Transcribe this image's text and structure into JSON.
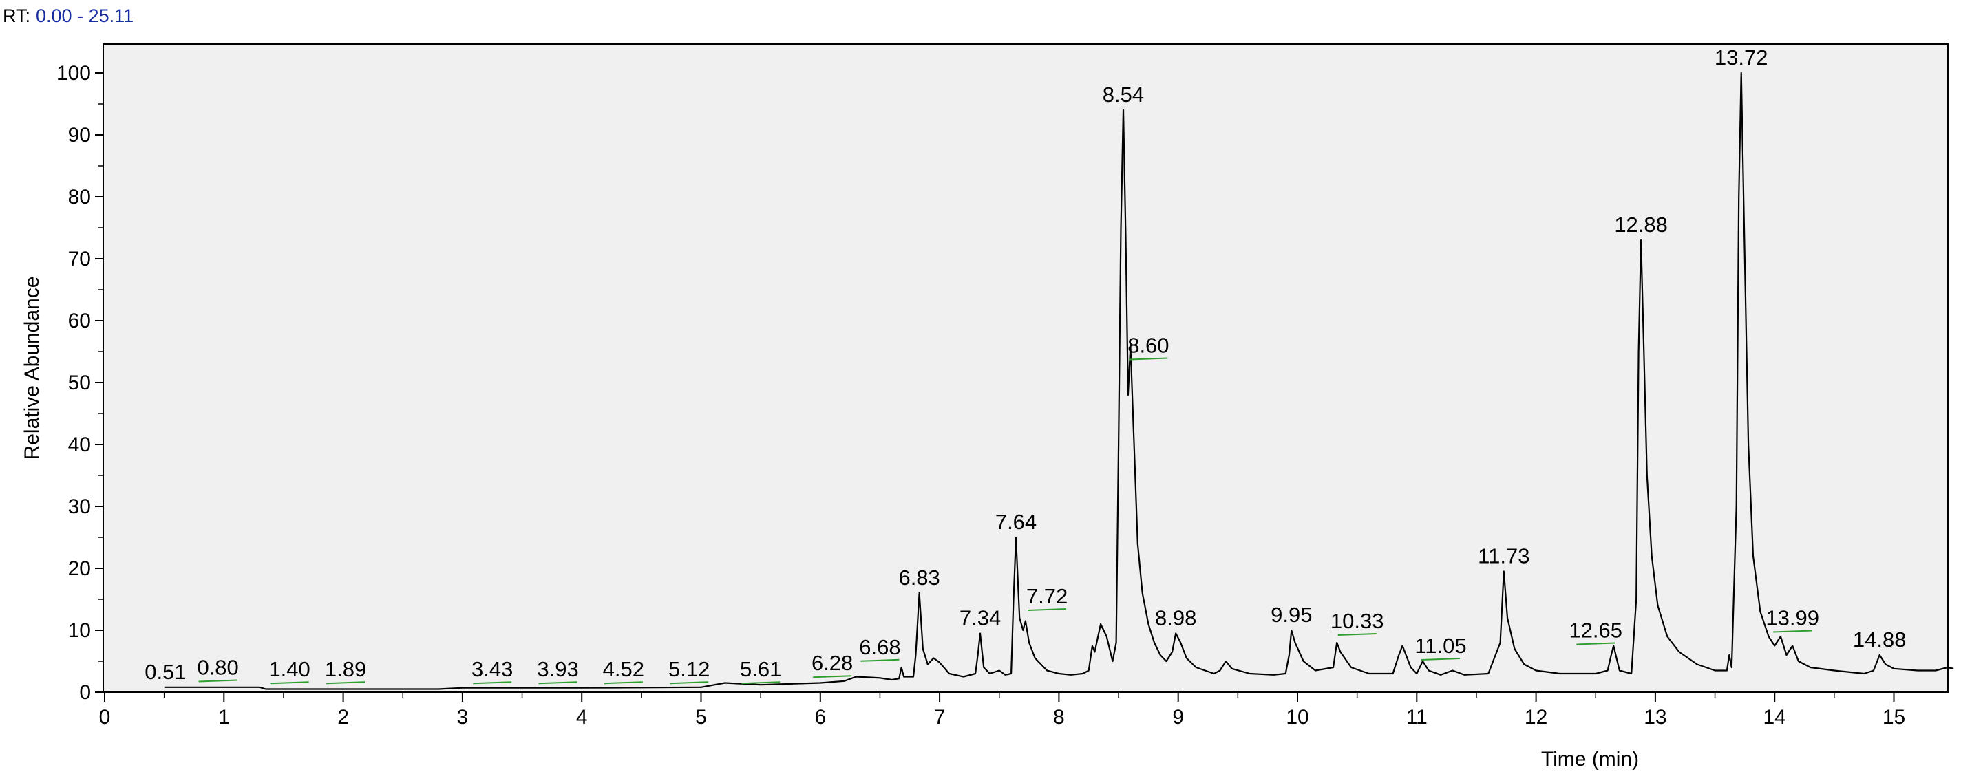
{
  "header": {
    "label": "RT:",
    "range": "0.00 - 25.11"
  },
  "chart_data": {
    "type": "line",
    "title": "",
    "xlabel": "Time (min)",
    "ylabel": "Relative Abundance",
    "xlim": [
      0,
      15.5
    ],
    "ylim": [
      0,
      105
    ],
    "x_ticks": [
      "0",
      "1",
      "2",
      "3",
      "4",
      "5",
      "6",
      "7",
      "8",
      "9",
      "10",
      "11",
      "12",
      "13",
      "14",
      "15"
    ],
    "y_ticks": [
      "0",
      "10",
      "20",
      "30",
      "40",
      "50",
      "60",
      "70",
      "80",
      "90",
      "100"
    ],
    "grid": false,
    "colors": {
      "trace": "#000000",
      "baseline_marker": "#2e9e2e",
      "plot_bg": "#f0f0f0",
      "rt_value": "#1a2ea0"
    },
    "trace": [
      [
        0.5,
        0.8
      ],
      [
        1.3,
        0.8
      ],
      [
        1.35,
        0.5
      ],
      [
        2.8,
        0.5
      ],
      [
        3.0,
        0.7
      ],
      [
        4.0,
        0.7
      ],
      [
        5.0,
        0.8
      ],
      [
        5.2,
        1.5
      ],
      [
        5.5,
        1.2
      ],
      [
        6.0,
        1.5
      ],
      [
        6.2,
        1.8
      ],
      [
        6.3,
        2.5
      ],
      [
        6.5,
        2.3
      ],
      [
        6.6,
        2.0
      ],
      [
        6.66,
        2.2
      ],
      [
        6.68,
        4.0
      ],
      [
        6.7,
        2.5
      ],
      [
        6.78,
        2.5
      ],
      [
        6.8,
        6.0
      ],
      [
        6.83,
        16.0
      ],
      [
        6.86,
        7.0
      ],
      [
        6.9,
        4.5
      ],
      [
        6.95,
        5.5
      ],
      [
        7.0,
        4.8
      ],
      [
        7.08,
        3.0
      ],
      [
        7.2,
        2.5
      ],
      [
        7.3,
        3.0
      ],
      [
        7.32,
        6.0
      ],
      [
        7.34,
        9.5
      ],
      [
        7.37,
        4.0
      ],
      [
        7.42,
        3.0
      ],
      [
        7.5,
        3.5
      ],
      [
        7.55,
        2.8
      ],
      [
        7.6,
        3.0
      ],
      [
        7.62,
        15.0
      ],
      [
        7.64,
        25.0
      ],
      [
        7.67,
        12.0
      ],
      [
        7.7,
        10.0
      ],
      [
        7.72,
        11.5
      ],
      [
        7.75,
        8.0
      ],
      [
        7.8,
        5.5
      ],
      [
        7.9,
        3.5
      ],
      [
        8.0,
        3.0
      ],
      [
        8.1,
        2.8
      ],
      [
        8.2,
        3.0
      ],
      [
        8.25,
        3.5
      ],
      [
        8.28,
        7.5
      ],
      [
        8.3,
        6.5
      ],
      [
        8.35,
        11.0
      ],
      [
        8.4,
        9.0
      ],
      [
        8.45,
        5.0
      ],
      [
        8.48,
        8.0
      ],
      [
        8.5,
        40.0
      ],
      [
        8.52,
        75.0
      ],
      [
        8.54,
        94.0
      ],
      [
        8.56,
        74.0
      ],
      [
        8.58,
        48.0
      ],
      [
        8.6,
        56.0
      ],
      [
        8.63,
        40.0
      ],
      [
        8.66,
        24.0
      ],
      [
        8.7,
        16.0
      ],
      [
        8.75,
        11.0
      ],
      [
        8.8,
        8.0
      ],
      [
        8.85,
        6.0
      ],
      [
        8.9,
        5.0
      ],
      [
        8.95,
        6.5
      ],
      [
        8.98,
        9.5
      ],
      [
        9.02,
        8.0
      ],
      [
        9.07,
        5.5
      ],
      [
        9.15,
        4.0
      ],
      [
        9.3,
        3.0
      ],
      [
        9.35,
        3.5
      ],
      [
        9.4,
        5.0
      ],
      [
        9.45,
        3.8
      ],
      [
        9.6,
        3.0
      ],
      [
        9.8,
        2.8
      ],
      [
        9.9,
        3.0
      ],
      [
        9.93,
        6.0
      ],
      [
        9.95,
        10.0
      ],
      [
        9.98,
        8.0
      ],
      [
        10.05,
        5.0
      ],
      [
        10.15,
        3.5
      ],
      [
        10.3,
        4.0
      ],
      [
        10.33,
        8.0
      ],
      [
        10.36,
        6.5
      ],
      [
        10.45,
        4.0
      ],
      [
        10.6,
        3.0
      ],
      [
        10.8,
        3.0
      ],
      [
        10.85,
        6.0
      ],
      [
        10.88,
        7.5
      ],
      [
        10.95,
        4.0
      ],
      [
        11.0,
        3.0
      ],
      [
        11.05,
        5.0
      ],
      [
        11.1,
        3.5
      ],
      [
        11.2,
        2.8
      ],
      [
        11.3,
        3.5
      ],
      [
        11.4,
        2.8
      ],
      [
        11.6,
        3.0
      ],
      [
        11.7,
        8.0
      ],
      [
        11.73,
        19.5
      ],
      [
        11.76,
        12.0
      ],
      [
        11.82,
        7.0
      ],
      [
        11.9,
        4.5
      ],
      [
        12.0,
        3.5
      ],
      [
        12.2,
        3.0
      ],
      [
        12.5,
        3.0
      ],
      [
        12.6,
        3.5
      ],
      [
        12.63,
        6.0
      ],
      [
        12.65,
        7.5
      ],
      [
        12.7,
        3.5
      ],
      [
        12.8,
        3.0
      ],
      [
        12.84,
        15.0
      ],
      [
        12.86,
        55.0
      ],
      [
        12.88,
        73.0
      ],
      [
        12.9,
        58.0
      ],
      [
        12.93,
        35.0
      ],
      [
        12.97,
        22.0
      ],
      [
        13.02,
        14.0
      ],
      [
        13.1,
        9.0
      ],
      [
        13.2,
        6.5
      ],
      [
        13.35,
        4.5
      ],
      [
        13.5,
        3.5
      ],
      [
        13.6,
        3.5
      ],
      [
        13.62,
        6.0
      ],
      [
        13.64,
        4.0
      ],
      [
        13.68,
        30.0
      ],
      [
        13.7,
        80.0
      ],
      [
        13.72,
        100.0
      ],
      [
        13.74,
        80.0
      ],
      [
        13.78,
        40.0
      ],
      [
        13.82,
        22.0
      ],
      [
        13.88,
        13.0
      ],
      [
        13.95,
        9.0
      ],
      [
        14.0,
        7.5
      ],
      [
        14.05,
        9.0
      ],
      [
        14.1,
        6.0
      ],
      [
        14.15,
        7.5
      ],
      [
        14.2,
        5.0
      ],
      [
        14.3,
        4.0
      ],
      [
        14.5,
        3.5
      ],
      [
        14.75,
        3.0
      ],
      [
        14.83,
        3.5
      ],
      [
        14.88,
        6.0
      ],
      [
        14.93,
        4.5
      ],
      [
        15.0,
        3.8
      ],
      [
        15.2,
        3.5
      ],
      [
        15.35,
        3.5
      ],
      [
        15.45,
        4.0
      ],
      [
        15.5,
        3.8
      ]
    ],
    "peaks": [
      {
        "rt": "0.51",
        "x": 0.51,
        "y": 0.8,
        "marker": false
      },
      {
        "rt": "0.80",
        "x": 0.95,
        "y": 1.5,
        "marker": true
      },
      {
        "rt": "1.40",
        "x": 1.55,
        "y": 1.2,
        "marker": true
      },
      {
        "rt": "1.89",
        "x": 2.02,
        "y": 1.2,
        "marker": true
      },
      {
        "rt": "3.43",
        "x": 3.25,
        "y": 1.2,
        "marker": true
      },
      {
        "rt": "3.93",
        "x": 3.8,
        "y": 1.2,
        "marker": true
      },
      {
        "rt": "4.52",
        "x": 4.35,
        "y": 1.2,
        "marker": true
      },
      {
        "rt": "5.12",
        "x": 4.9,
        "y": 1.2,
        "marker": true
      },
      {
        "rt": "5.61",
        "x": 5.5,
        "y": 1.2,
        "marker": true
      },
      {
        "rt": "6.28",
        "x": 6.1,
        "y": 2.2,
        "marker": true
      },
      {
        "rt": "6.68",
        "x": 6.5,
        "y": 4.8,
        "marker": true
      },
      {
        "rt": "6.83",
        "x": 6.83,
        "y": 16.0,
        "marker": false
      },
      {
        "rt": "7.34",
        "x": 7.34,
        "y": 9.5,
        "marker": false
      },
      {
        "rt": "7.64",
        "x": 7.64,
        "y": 25.0,
        "marker": false
      },
      {
        "rt": "7.72",
        "x": 7.9,
        "y": 13.0,
        "marker": true
      },
      {
        "rt": "8.54",
        "x": 8.54,
        "y": 94.0,
        "marker": false
      },
      {
        "rt": "8.60",
        "x": 8.75,
        "y": 53.5,
        "marker": true
      },
      {
        "rt": "8.98",
        "x": 8.98,
        "y": 9.5,
        "marker": false
      },
      {
        "rt": "9.95",
        "x": 9.95,
        "y": 10.0,
        "marker": false
      },
      {
        "rt": "10.33",
        "x": 10.5,
        "y": 9.0,
        "marker": true
      },
      {
        "rt": "11.05",
        "x": 11.2,
        "y": 5.0,
        "marker": true
      },
      {
        "rt": "11.73",
        "x": 11.73,
        "y": 19.5,
        "marker": false
      },
      {
        "rt": "12.65",
        "x": 12.5,
        "y": 7.5,
        "marker": true
      },
      {
        "rt": "12.88",
        "x": 12.88,
        "y": 73.0,
        "marker": false
      },
      {
        "rt": "13.72",
        "x": 13.72,
        "y": 100.0,
        "marker": false
      },
      {
        "rt": "13.99",
        "x": 14.15,
        "y": 9.5,
        "marker": true
      },
      {
        "rt": "14.88",
        "x": 14.88,
        "y": 6.0,
        "marker": false
      }
    ]
  }
}
